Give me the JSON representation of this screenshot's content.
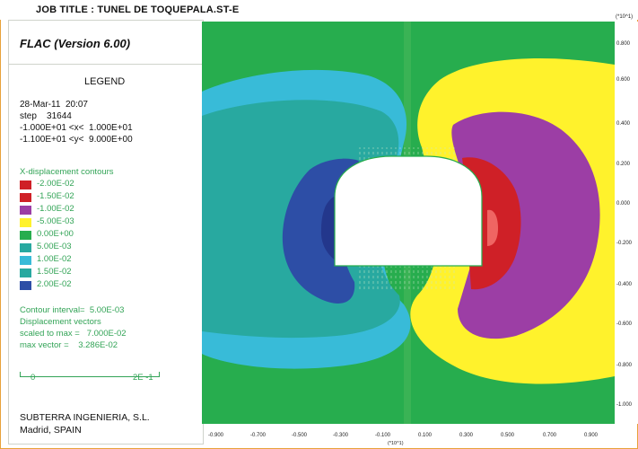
{
  "header": {
    "job_title": "JOB TITLE : TUNEL DE TOQUEPALA.ST-E",
    "y_multiplier": "(*10^1)"
  },
  "legend": {
    "program": "FLAC (Version 6.00)",
    "title": "LEGEND",
    "info_lines": [
      "28-Mar-11  20:07",
      "step    31644",
      "-1.000E+01 <x<  1.000E+01",
      "-1.100E+01 <y<  9.000E+00"
    ],
    "contours_title": "X-displacement contours",
    "contour_items": [
      {
        "label": "-2.00E-02",
        "color": "#cf2027"
      },
      {
        "label": "-1.50E-02",
        "color": "#cf2027"
      },
      {
        "label": "-1.00E-02",
        "color": "#9c3ea5"
      },
      {
        "label": "-5.00E-03",
        "color": "#fff22c"
      },
      {
        "label": "0.00E+00",
        "color": "#27ad4e"
      },
      {
        "label": "5.00E-03",
        "color": "#28a9a0"
      },
      {
        "label": "1.00E-02",
        "color": "#38bbd8"
      },
      {
        "label": "1.50E-02",
        "color": "#28a9a0"
      },
      {
        "label": "2.00E-02",
        "color": "#2d4ea6"
      }
    ],
    "contour_interval": "Contour interval=  5.00E-03",
    "vectors_title": "Displacement vectors",
    "vectors_scaled": "scaled to max =   7.000E-02",
    "max_vector": "max vector =    3.286E-02",
    "scale_left": "0",
    "scale_right": "2E -1",
    "company": "SUBTERRA INGENIERIA, S.L.",
    "location": "Madrid, SPAIN"
  },
  "y_axis": {
    "ticks": [
      "0.800",
      "0.600",
      "0.400",
      "0.200",
      "0.000",
      "-0.200",
      "-0.400",
      "-0.600",
      "-0.800",
      "-1.000"
    ]
  },
  "x_axis": {
    "ticks": [
      "-0.900",
      "-0.700",
      "-0.500",
      "-0.300",
      "-0.100",
      "0.100",
      "0.300",
      "0.500",
      "0.700",
      "0.900"
    ],
    "multiplier": "(*10^1)"
  },
  "colors": {
    "green": "#27ad4e",
    "light_green": "#5fbf63",
    "teal": "#28a9a0",
    "cyan": "#38bbd8",
    "blue": "#2d4ea6",
    "navy": "#23378c",
    "yellow": "#fff22c",
    "purple": "#9c3ea5",
    "red": "#cf2027",
    "light_red": "#ef6563"
  }
}
